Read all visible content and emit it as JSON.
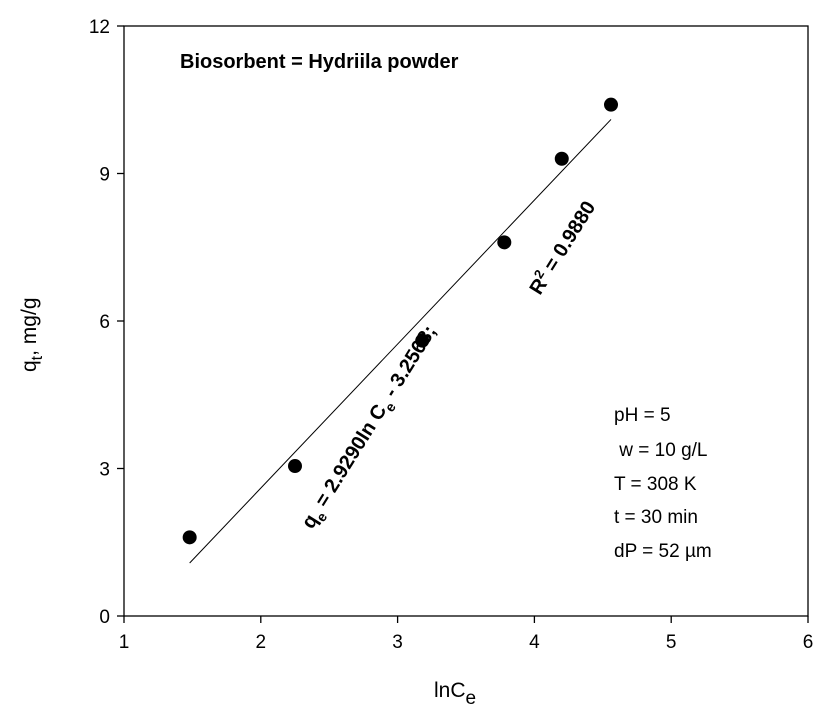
{
  "chart_data": {
    "type": "scatter",
    "title": "Biosorbent = Hydriila  powder",
    "xlabel": "lnC",
    "xlabel_sub": "e",
    "ylabel": "q",
    "ylabel_sub": "t",
    "ylabel_unit": ", mg/g",
    "xlim": [
      1,
      6
    ],
    "ylim": [
      0,
      12
    ],
    "x_ticks": [
      1,
      2,
      3,
      4,
      5,
      6
    ],
    "y_ticks": [
      0,
      3,
      6,
      9,
      12
    ],
    "grid": false,
    "series": [
      {
        "points": [
          {
            "x": 1.48,
            "y": 1.6
          },
          {
            "x": 2.25,
            "y": 3.05
          },
          {
            "x": 3.18,
            "y": 5.6
          },
          {
            "x": 3.78,
            "y": 7.6
          },
          {
            "x": 4.2,
            "y": 9.3
          },
          {
            "x": 4.56,
            "y": 10.4
          }
        ]
      }
    ],
    "fit_line": {
      "slope": 2.929,
      "intercept": -3.2568,
      "x_start": 1.48,
      "x_end": 4.56
    },
    "equation": {
      "q": "q",
      "q_sub": "e",
      "middle": " = 2.9290ln C",
      "c_sub": "e",
      "end": " - 3.2568;",
      "r2_base": "R",
      "r2_sup": "2",
      "r2_value": " = 0.9880"
    },
    "conditions": [
      "pH = 5",
      " w = 10 g/L",
      "T = 308 K",
      "t = 30 min",
      "dP = 52 µm"
    ]
  }
}
